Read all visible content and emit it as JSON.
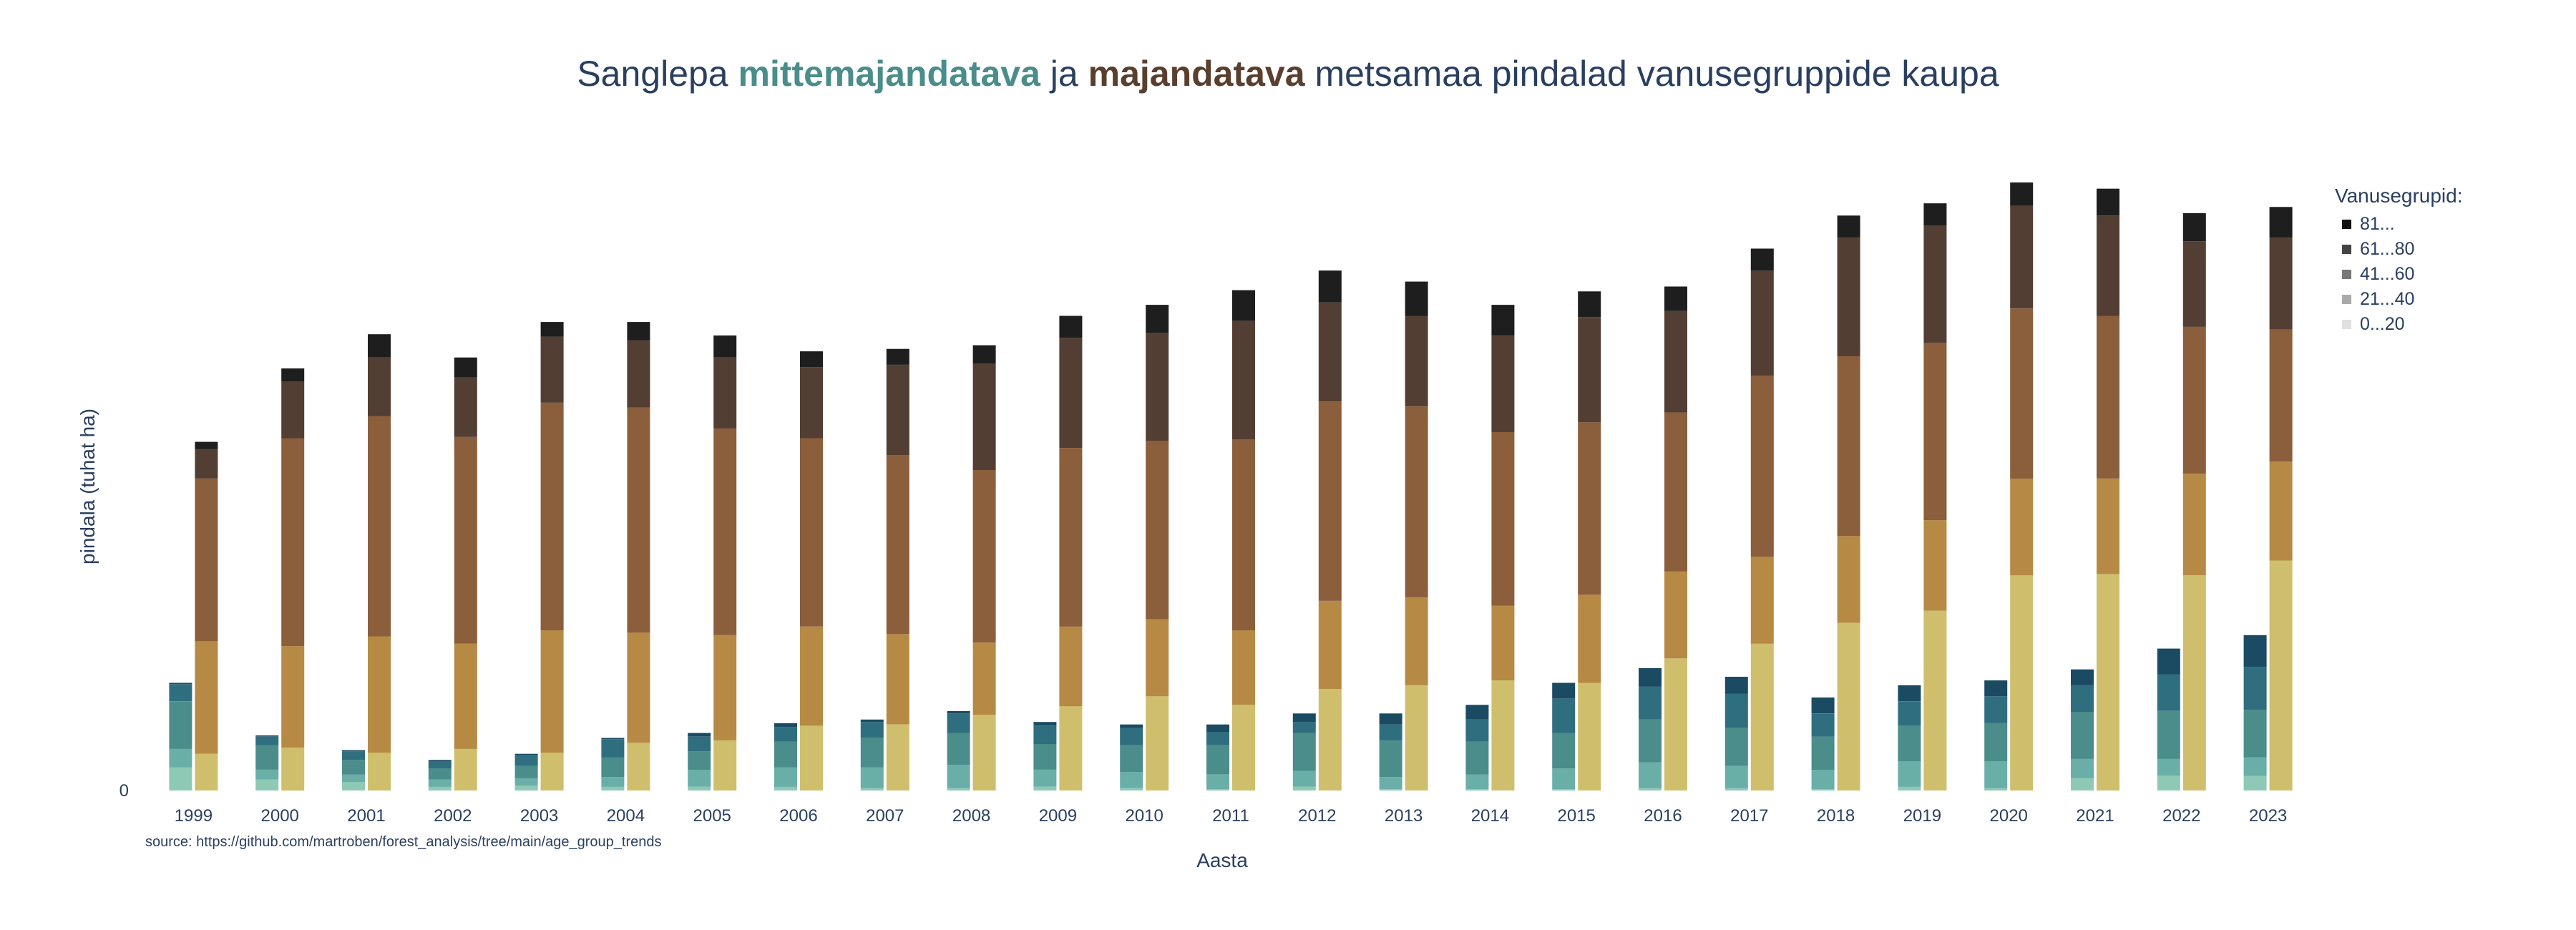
{
  "title": {
    "part1": "Sanglepa ",
    "highlight1": "mittemajandatava",
    "part2": " ja ",
    "highlight2": "majandatava",
    "part3": " metsamaa pindalad vanusegruppide kaupa",
    "highlight1_color": "#4a8d8b",
    "highlight2_color": "#5a3f2e"
  },
  "legend": {
    "title": "Vanusegrupid:",
    "items": [
      {
        "label": "81...",
        "color": "#111111"
      },
      {
        "label": "61...80",
        "color": "#444444"
      },
      {
        "label": "41...60",
        "color": "#777777"
      },
      {
        "label": "21...40",
        "color": "#aaaaaa"
      },
      {
        "label": "0...20",
        "color": "#e0e0e0"
      }
    ]
  },
  "source": "source: https://github.com/martroben/forest_analysis/tree/main/age_group_trends",
  "chart_data": {
    "type": "bar",
    "mode": "stacked-grouped",
    "title": "Sanglepa mittemajandatava ja majandatava metsamaa pindalad vanusegruppide kaupa",
    "xlabel": "Aasta",
    "ylabel": "pindala (tuhat ha)",
    "y_tick_labels": [
      "0"
    ],
    "ylim": [
      0,
      50
    ],
    "gridlines": false,
    "legend_position": "right",
    "categories": [
      "1999",
      "2000",
      "2001",
      "2002",
      "2003",
      "2004",
      "2005",
      "2006",
      "2007",
      "2008",
      "2009",
      "2010",
      "2011",
      "2012",
      "2013",
      "2014",
      "2015",
      "2016",
      "2017",
      "2018",
      "2019",
      "2020",
      "2021",
      "2022",
      "2023"
    ],
    "age_groups": [
      "0...20",
      "21...40",
      "41...60",
      "61...80",
      "81..."
    ],
    "groups": [
      {
        "name": "mittemajandatava",
        "colors": [
          "#8ec9b6",
          "#6aaea8",
          "#4a8d8b",
          "#2f6e7e",
          "#1b4a63"
        ],
        "series": [
          {
            "name": "0...20",
            "values": [
              1.9,
              0.9,
              0.7,
              0.3,
              0.4,
              0.3,
              0.3,
              0.3,
              0.2,
              0.2,
              0.3,
              0.2,
              0.1,
              0.3,
              0.1,
              0.1,
              0.1,
              0.2,
              0.2,
              0.1,
              0.3,
              0.2,
              1.0,
              1.2,
              1.2
            ]
          },
          {
            "name": "21...40",
            "values": [
              1.5,
              0.8,
              0.6,
              0.6,
              0.6,
              0.8,
              1.4,
              1.6,
              1.7,
              1.9,
              1.4,
              1.3,
              1.2,
              1.3,
              1.0,
              1.2,
              1.7,
              2.1,
              1.8,
              1.6,
              2.1,
              2.2,
              1.6,
              1.4,
              1.5
            ]
          },
          {
            "name": "41...60",
            "values": [
              3.9,
              2.0,
              1.2,
              0.9,
              1.0,
              1.6,
              1.5,
              2.1,
              2.4,
              2.6,
              2.1,
              2.2,
              2.4,
              3.1,
              3.0,
              2.7,
              2.9,
              3.5,
              3.1,
              2.7,
              2.9,
              3.1,
              3.8,
              3.9,
              3.9
            ]
          },
          {
            "name": "61...80",
            "values": [
              1.4,
              0.7,
              0.7,
              0.6,
              0.9,
              1.5,
              1.2,
              1.2,
              1.3,
              1.6,
              1.5,
              1.4,
              1.1,
              0.9,
              1.3,
              1.8,
              2.8,
              2.7,
              2.8,
              1.9,
              2.0,
              2.2,
              2.2,
              3.0,
              3.5
            ]
          },
          {
            "name": "81...",
            "values": [
              0.1,
              0.1,
              0.1,
              0.1,
              0.1,
              0.1,
              0.3,
              0.3,
              0.2,
              0.2,
              0.3,
              0.3,
              0.6,
              0.7,
              0.9,
              1.2,
              1.3,
              1.5,
              1.4,
              1.3,
              1.3,
              1.3,
              1.3,
              2.1,
              2.6
            ]
          }
        ]
      },
      {
        "name": "majandatava",
        "colors": [
          "#cfbe6c",
          "#b68a44",
          "#8b5e3c",
          "#533e33",
          "#1e1e1e"
        ],
        "series": [
          {
            "name": "0...20",
            "values": [
              3.0,
              3.5,
              3.1,
              3.4,
              3.1,
              3.9,
              4.1,
              5.3,
              5.4,
              6.2,
              6.9,
              7.7,
              7.0,
              8.3,
              8.6,
              9.0,
              8.8,
              10.8,
              12.0,
              13.7,
              14.7,
              17.6,
              17.7,
              17.6,
              18.8
            ]
          },
          {
            "name": "21...40",
            "values": [
              9.2,
              8.3,
              9.5,
              8.6,
              10.0,
              9.0,
              8.6,
              8.1,
              7.4,
              5.9,
              6.5,
              6.3,
              6.1,
              7.2,
              7.2,
              6.1,
              7.2,
              7.1,
              7.1,
              7.1,
              7.4,
              7.9,
              7.8,
              8.3,
              8.1
            ]
          },
          {
            "name": "41...60",
            "values": [
              13.3,
              17.0,
              18.0,
              16.9,
              18.6,
              18.4,
              16.9,
              15.4,
              14.6,
              14.1,
              14.6,
              14.6,
              15.6,
              16.3,
              15.6,
              14.2,
              14.1,
              13.0,
              14.8,
              14.7,
              14.5,
              13.9,
              13.3,
              12.0,
              10.8
            ]
          },
          {
            "name": "61...80",
            "values": [
              2.4,
              4.6,
              4.8,
              4.9,
              5.4,
              5.5,
              5.8,
              5.8,
              7.4,
              8.7,
              9.0,
              8.8,
              9.7,
              8.1,
              7.4,
              7.9,
              8.6,
              8.3,
              8.6,
              9.7,
              9.6,
              8.4,
              8.2,
              7.0,
              7.5
            ]
          },
          {
            "name": "81...",
            "values": [
              0.6,
              1.1,
              1.9,
              1.6,
              1.2,
              1.5,
              1.8,
              1.3,
              1.3,
              1.5,
              1.8,
              2.3,
              2.5,
              2.6,
              2.8,
              2.5,
              2.1,
              2.0,
              1.8,
              1.8,
              1.8,
              1.9,
              2.2,
              2.3,
              2.5
            ]
          }
        ]
      }
    ]
  }
}
